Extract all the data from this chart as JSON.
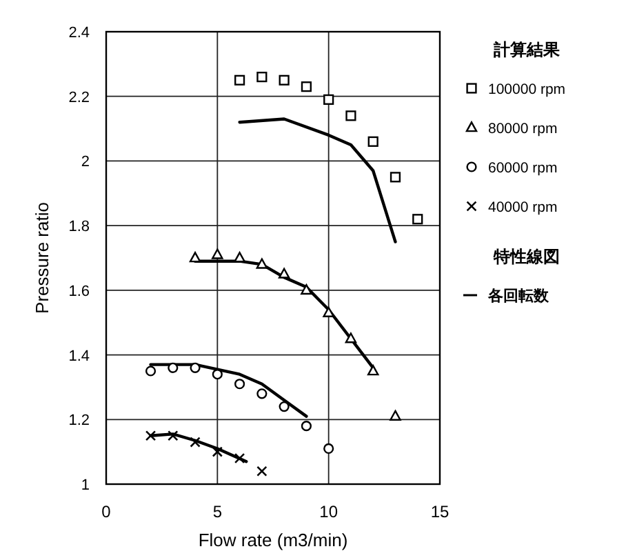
{
  "chart_data": {
    "type": "scatter",
    "xlabel": "Flow rate (m3/min)",
    "ylabel": "Pressure ratio",
    "xlim": [
      0,
      15
    ],
    "xticks": [
      0,
      5,
      10,
      15
    ],
    "ylim": [
      1,
      2.4
    ],
    "yticks": [
      1,
      1.2,
      1.4,
      1.6,
      1.8,
      2,
      2.2,
      2.4
    ],
    "grid": true,
    "legend": "right",
    "legend_title": "計算結果",
    "annotations": [
      "特性線図"
    ],
    "series": [
      {
        "name": "100000 rpm",
        "marker": "square",
        "color": "#000000",
        "x": [
          6,
          7,
          8,
          9,
          10,
          11,
          12,
          13,
          14
        ],
        "values": [
          2.25,
          2.26,
          2.25,
          2.23,
          2.19,
          2.14,
          2.06,
          1.95,
          1.82
        ]
      },
      {
        "name": "80000 rpm",
        "marker": "triangle",
        "color": "#000000",
        "x": [
          4,
          5,
          6,
          7,
          8,
          9,
          10,
          11,
          12,
          13
        ],
        "values": [
          1.7,
          1.71,
          1.7,
          1.68,
          1.65,
          1.6,
          1.53,
          1.45,
          1.35,
          1.21
        ]
      },
      {
        "name": "60000 rpm",
        "marker": "circle",
        "color": "#000000",
        "x": [
          2,
          3,
          4,
          5,
          6,
          7,
          8,
          9,
          10
        ],
        "values": [
          1.35,
          1.36,
          1.36,
          1.34,
          1.31,
          1.28,
          1.24,
          1.18,
          1.11
        ]
      },
      {
        "name": "40000 rpm",
        "marker": "cross",
        "color": "#000000",
        "x": [
          2,
          3,
          4,
          5,
          6,
          7
        ],
        "values": [
          1.15,
          1.15,
          1.13,
          1.1,
          1.08,
          1.04
        ]
      },
      {
        "name": "各回転数",
        "type": "line",
        "marker": "none",
        "color": "#000000",
        "x": [
          6,
          8,
          10,
          11,
          12,
          13
        ],
        "values": [
          2.12,
          2.13,
          2.08,
          2.05,
          1.97,
          1.75
        ]
      },
      {
        "type": "line",
        "marker": "none",
        "color": "#000000",
        "x": [
          4,
          6,
          7,
          8,
          9,
          10,
          11,
          12
        ],
        "values": [
          1.69,
          1.69,
          1.68,
          1.64,
          1.61,
          1.54,
          1.45,
          1.36
        ]
      },
      {
        "type": "line",
        "marker": "none",
        "color": "#000000",
        "x": [
          2,
          4,
          6,
          7,
          8,
          9
        ],
        "values": [
          1.37,
          1.37,
          1.34,
          1.31,
          1.26,
          1.21
        ]
      },
      {
        "type": "line",
        "marker": "none",
        "color": "#000000",
        "x": [
          2,
          3,
          4,
          5,
          6.3
        ],
        "values": [
          1.15,
          1.155,
          1.135,
          1.11,
          1.07
        ]
      }
    ]
  }
}
